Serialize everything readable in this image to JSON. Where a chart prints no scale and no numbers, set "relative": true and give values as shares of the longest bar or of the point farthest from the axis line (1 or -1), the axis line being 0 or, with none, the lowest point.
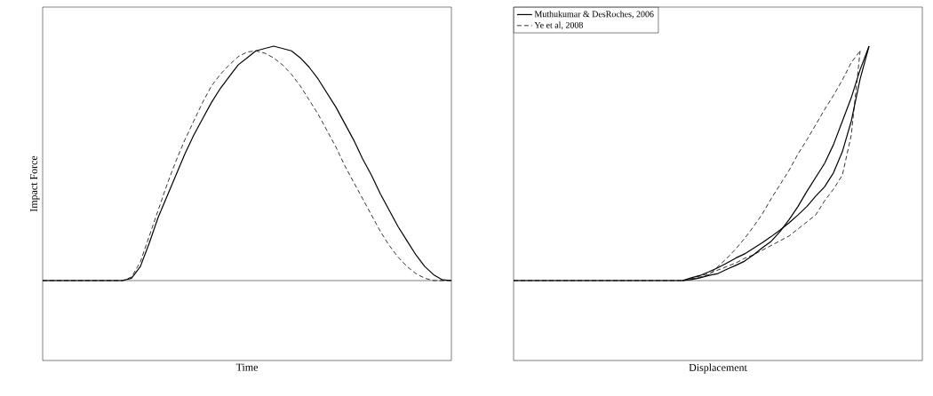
{
  "chart_data": [
    {
      "type": "line",
      "relative": true,
      "xlabel": "Time",
      "ylabel": "Impact Force",
      "tick_labels": false,
      "legend": false,
      "marker": "none",
      "categories": [
        null,
        null,
        null,
        null,
        null,
        null,
        null,
        null,
        null,
        null,
        null,
        null,
        null,
        null,
        null,
        null,
        null,
        null,
        null,
        null,
        null,
        null,
        null,
        null,
        null,
        null,
        null,
        null,
        null,
        null,
        null,
        null,
        null,
        null,
        null,
        null,
        null,
        null,
        null,
        null,
        null,
        null,
        null,
        null,
        null,
        null,
        null
      ],
      "series": [
        {
          "color": "#000000",
          "line_style": "solid",
          "values": [
            0,
            0,
            0,
            0,
            0,
            0,
            0,
            0,
            0,
            0,
            0.01,
            0.06,
            0.16,
            0.27,
            0.36,
            0.45,
            0.54,
            0.62,
            0.69,
            0.76,
            0.82,
            0.87,
            0.92,
            0.95,
            0.98,
            0.99,
            1,
            0.99,
            0.98,
            0.95,
            0.91,
            0.86,
            0.8,
            0.74,
            0.67,
            0.6,
            0.52,
            0.45,
            0.37,
            0.3,
            0.23,
            0.17,
            0.11,
            0.06,
            0.025,
            0.003,
            0
          ]
        },
        {
          "color": "#000000",
          "line_style": "dashed",
          "values": [
            0,
            0,
            0,
            0,
            0,
            0,
            0,
            0,
            0,
            0,
            0.015,
            0.08,
            0.19,
            0.3,
            0.41,
            0.51,
            0.6,
            0.68,
            0.76,
            0.83,
            0.88,
            0.92,
            0.955,
            0.975,
            0.98,
            0.97,
            0.95,
            0.92,
            0.88,
            0.83,
            0.77,
            0.71,
            0.64,
            0.57,
            0.49,
            0.42,
            0.35,
            0.28,
            0.21,
            0.15,
            0.1,
            0.06,
            0.03,
            0.01,
            0,
            0,
            0
          ]
        }
      ]
    },
    {
      "type": "line",
      "relative": true,
      "xlabel": "Displacement",
      "tick_labels": false,
      "legend": "top left",
      "marker": "none",
      "categories": [
        null,
        null,
        null,
        null,
        null,
        null,
        null,
        null,
        null,
        null,
        null,
        null,
        null,
        null,
        null,
        null,
        null,
        null,
        null,
        null,
        null,
        null,
        null,
        null,
        null,
        null,
        null,
        null,
        null,
        null,
        null,
        null,
        null,
        null,
        null,
        null,
        null,
        null,
        null,
        null,
        null,
        null,
        null,
        null,
        null,
        null,
        null
      ],
      "series": [
        {
          "name": "Muthukumar & DesRoches, 2006",
          "color": "#000000",
          "line_style": "solid",
          "values": [
            0,
            0,
            0,
            0,
            0,
            0,
            0,
            0,
            0,
            0,
            0,
            0,
            0,
            0,
            0,
            0,
            0,
            0,
            0,
            0,
            0.004,
            0.012,
            0.022,
            0.03,
            0.048,
            0.065,
            0.083,
            0.11,
            0.14,
            0.168,
            0.21,
            0.26,
            0.316,
            0.38,
            0.44,
            0.5,
            0.58,
            0.68,
            0.78,
            0.9,
            1,
            null,
            null,
            null,
            null,
            null,
            null
          ]
        },
        {
          "color": "#000000",
          "line_style": "solid",
          "values": [
            null,
            null,
            null,
            null,
            null,
            null,
            null,
            null,
            null,
            null,
            null,
            null,
            null,
            null,
            null,
            null,
            null,
            null,
            null,
            0,
            0.012,
            0.022,
            0.038,
            0.055,
            0.075,
            0.096,
            0.114,
            0.138,
            0.162,
            0.188,
            0.216,
            0.246,
            0.28,
            0.316,
            0.36,
            0.4,
            0.46,
            0.55,
            0.68,
            0.86,
            1,
            null,
            null,
            null,
            null,
            null,
            null
          ]
        },
        {
          "name": "Ye et al, 2008",
          "color": "#000000",
          "line_style": "dashed",
          "values": [
            0,
            0,
            0,
            0,
            0,
            0,
            0,
            0,
            0,
            0,
            0,
            0,
            0,
            0,
            0,
            0,
            0,
            0,
            0,
            0,
            0.005,
            0.015,
            0.025,
            0.06,
            0.095,
            0.135,
            0.18,
            0.23,
            0.285,
            0.35,
            0.41,
            0.47,
            0.54,
            0.6,
            0.665,
            0.73,
            0.79,
            0.856,
            0.93,
            0.98,
            null,
            null,
            null,
            null,
            null,
            null,
            null
          ]
        },
        {
          "color": "#000000",
          "line_style": "dashed",
          "values": [
            null,
            null,
            null,
            null,
            null,
            null,
            null,
            null,
            null,
            null,
            null,
            null,
            null,
            null,
            null,
            null,
            null,
            null,
            null,
            0,
            0.008,
            0.02,
            0.03,
            0.045,
            0.06,
            0.075,
            0.095,
            0.11,
            0.13,
            0.15,
            0.17,
            0.19,
            0.22,
            0.25,
            0.28,
            0.34,
            0.39,
            0.45,
            0.62,
            0.98,
            null,
            null,
            null,
            null,
            null,
            null,
            null
          ]
        }
      ]
    }
  ]
}
